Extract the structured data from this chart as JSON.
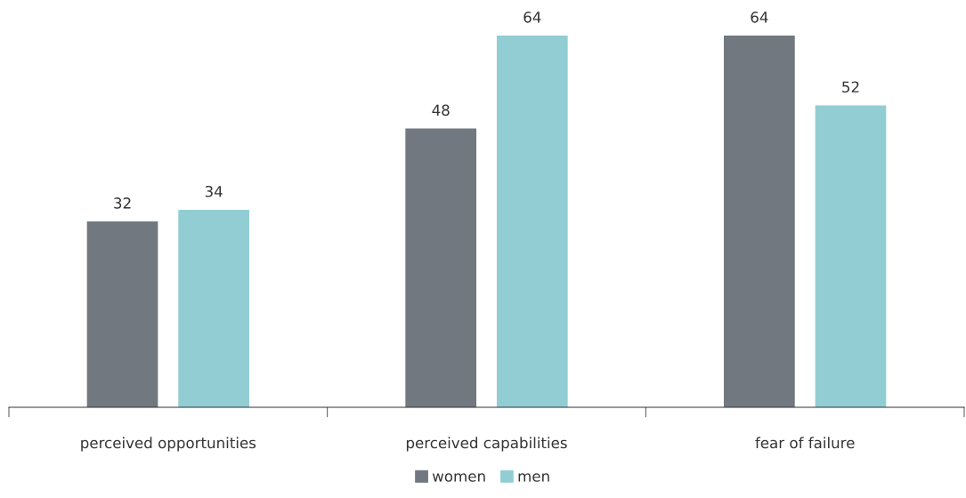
{
  "chart_data": {
    "type": "bar",
    "categories": [
      "perceived opportunities",
      "perceived capabilities",
      "fear of failure"
    ],
    "series": [
      {
        "name": "women",
        "color": "#717880",
        "values": [
          32,
          48,
          64
        ]
      },
      {
        "name": "men",
        "color": "#92cdd4",
        "values": [
          34,
          64,
          52
        ]
      }
    ],
    "data_labels": true,
    "legend": "bottom",
    "grid": false
  }
}
